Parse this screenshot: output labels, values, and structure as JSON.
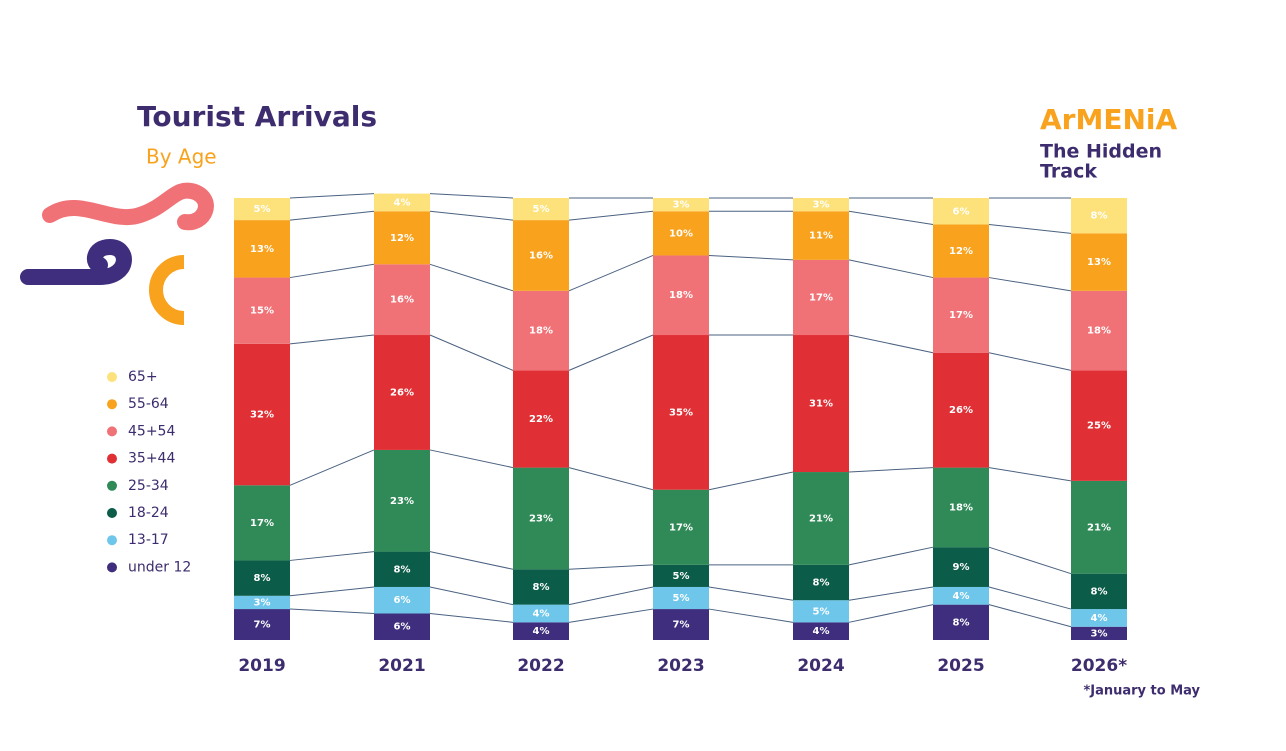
{
  "chart_data": {
    "type": "stacked-bar",
    "title": "Tourist Arrivals",
    "subtitle": "By Age",
    "categories": [
      "2019",
      "2021",
      "2022",
      "2023",
      "2024",
      "2025",
      "2026*"
    ],
    "annotations": [
      "*January to May"
    ],
    "series": [
      {
        "name": "under 12",
        "color": "#3f2e7e",
        "values": [
          7,
          6,
          4,
          7,
          4,
          8,
          3
        ],
        "value_labels": [
          "7%",
          "6%",
          "4%",
          "7%",
          "4%",
          "8%",
          "3%"
        ]
      },
      {
        "name": "13-17",
        "color": "#6ec6ea",
        "values": [
          3,
          6,
          4,
          5,
          5,
          4,
          4
        ],
        "value_labels": [
          "3%",
          "6%",
          "4%",
          "5%",
          "5%",
          "4%",
          "4%"
        ]
      },
      {
        "name": "18-24",
        "color": "#0b5c48",
        "values": [
          8,
          8,
          8,
          5,
          8,
          9,
          8
        ],
        "value_labels": [
          "8%",
          "8%",
          "8%",
          "5%",
          "8%",
          "9%",
          "8%"
        ]
      },
      {
        "name": "25-34",
        "color": "#2f8a57",
        "values": [
          17,
          23,
          23,
          17,
          21,
          18,
          21
        ],
        "value_labels": [
          "17%",
          "23%",
          "23%",
          "17%",
          "21%",
          "18%",
          "21%"
        ]
      },
      {
        "name": "35+44",
        "color": "#e03035",
        "values": [
          32,
          26,
          22,
          35,
          31,
          26,
          25
        ],
        "value_labels": [
          "32%",
          "26%",
          "22%",
          "35%",
          "31%",
          "26%",
          "25%"
        ]
      },
      {
        "name": "45+54",
        "color": "#f07277",
        "values": [
          15,
          16,
          18,
          18,
          17,
          17,
          18
        ],
        "value_labels": [
          "15%",
          "16%",
          "18%",
          "18%",
          "17%",
          "17%",
          "18%"
        ]
      },
      {
        "name": "55-64",
        "color": "#f8a21d",
        "values": [
          13,
          12,
          16,
          10,
          11,
          12,
          13
        ],
        "value_labels": [
          "13%",
          "12%",
          "16%",
          "10%",
          "11%",
          "12%",
          "13%"
        ]
      },
      {
        "name": "65+",
        "color": "#fde27b",
        "values": [
          5,
          4,
          5,
          3,
          3,
          6,
          8
        ],
        "value_labels": [
          "5%",
          "4%",
          "5%",
          "3%",
          "3%",
          "6%",
          "8%"
        ]
      }
    ]
  },
  "logo": {
    "name": "ArMENiA",
    "tagline": [
      "The Hidden",
      "Track"
    ]
  }
}
